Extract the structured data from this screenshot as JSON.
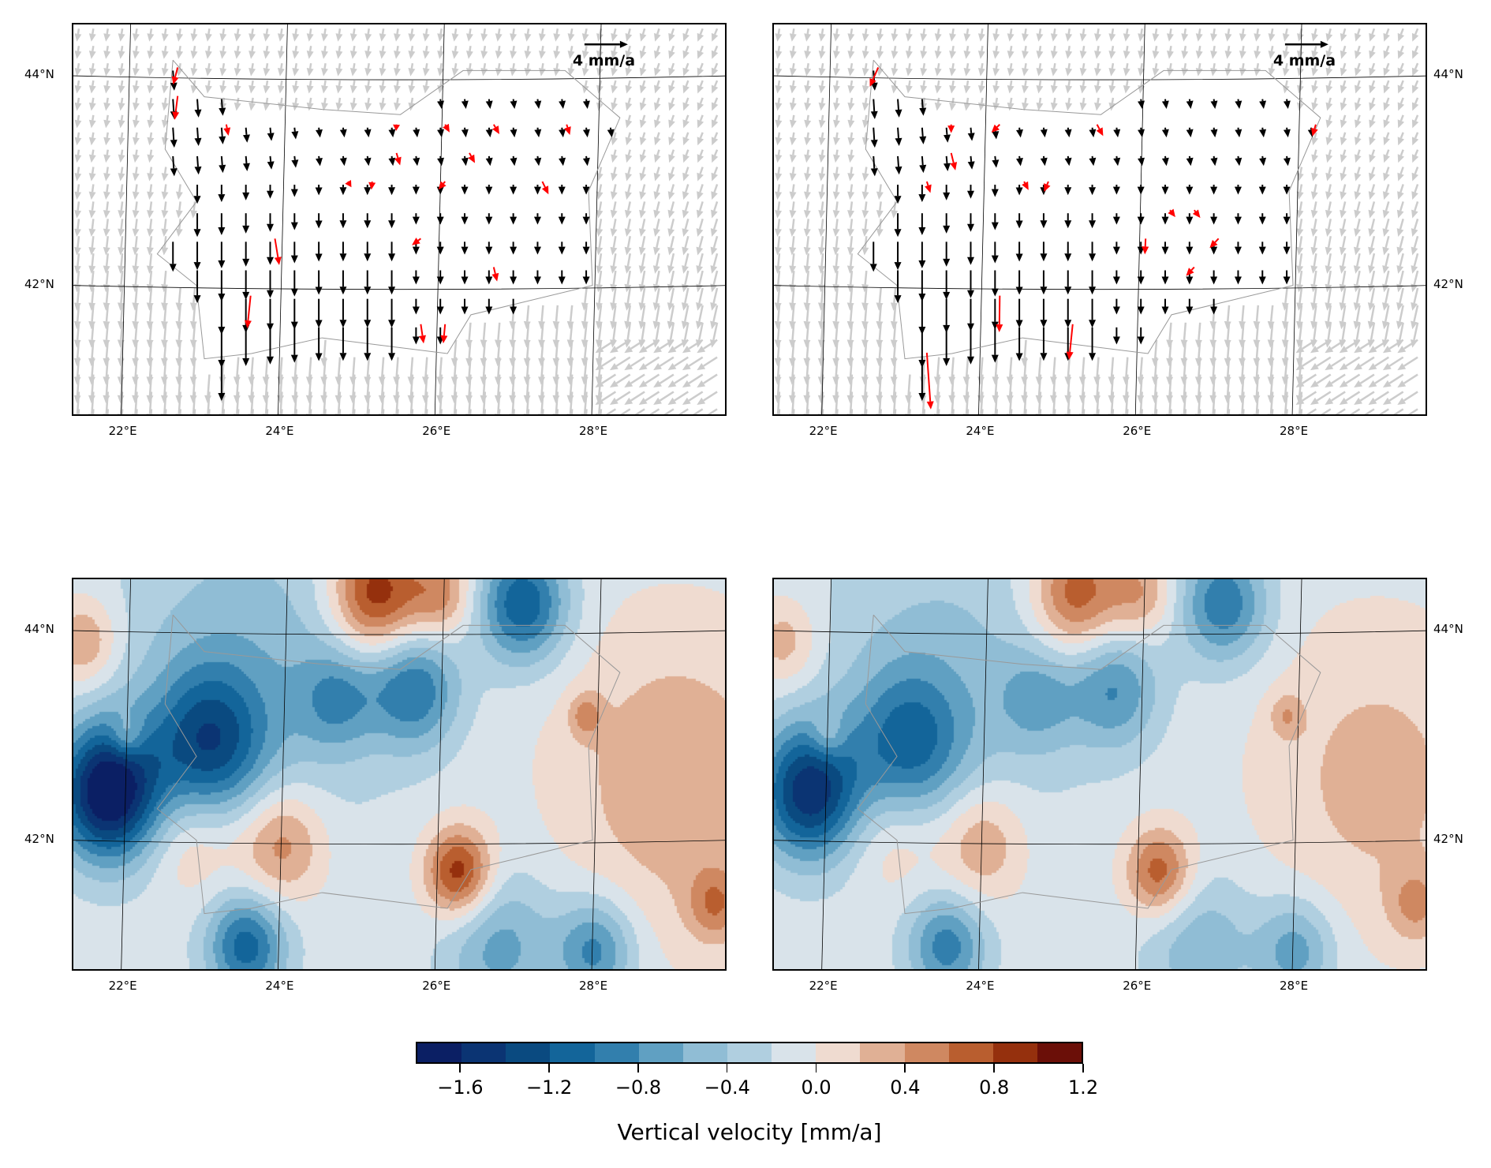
{
  "chart_data": [
    {
      "type": "quiver",
      "panel": "top-left",
      "title": "",
      "legend": {
        "label": "4 mm/a",
        "reference_mm_a": 4
      },
      "xticks": [
        "22°E",
        "24°E",
        "26°E",
        "28°E"
      ],
      "yticks": [
        "44°N",
        "42°N"
      ],
      "amp_factor": 1.0
    },
    {
      "type": "quiver",
      "panel": "top-right",
      "title": "",
      "legend": {
        "label": "4 mm/a",
        "reference_mm_a": 4
      },
      "xticks": [
        "22°E",
        "24°E",
        "26°E",
        "28°E"
      ],
      "yticks": [
        "44°N",
        "42°N"
      ],
      "amp_factor": 1.0
    },
    {
      "type": "heatmap",
      "panel": "bottom-left",
      "xticks": [
        "22°E",
        "24°E",
        "26°E",
        "28°E"
      ],
      "yticks": [
        "44°N",
        "42°N"
      ],
      "amp_factor": 1.0
    },
    {
      "type": "heatmap",
      "panel": "bottom-right",
      "xticks": [
        "22°E",
        "24°E",
        "26°E",
        "28°E"
      ],
      "yticks": [
        "44°N",
        "42°N"
      ],
      "amp_factor": 0.8
    }
  ],
  "extent": {
    "lon": [
      21.33,
      29.68
    ],
    "lat": [
      40.74,
      44.49
    ]
  },
  "anomalies": [
    {
      "lon": 21.76,
      "lat": 42.47,
      "v": -1.75,
      "s": 0.45
    },
    {
      "lon": 23.04,
      "lat": 42.94,
      "v": -1.0,
      "s": 0.5
    },
    {
      "lon": 23.5,
      "lat": 43.6,
      "v": -0.45,
      "s": 1.2
    },
    {
      "lon": 25.17,
      "lat": 44.36,
      "v": 1.1,
      "s": 0.4
    },
    {
      "lon": 26.0,
      "lat": 44.36,
      "v": 0.6,
      "s": 0.3
    },
    {
      "lon": 27.05,
      "lat": 44.27,
      "v": -1.1,
      "s": 0.4
    },
    {
      "lon": 25.66,
      "lat": 43.45,
      "v": -0.85,
      "s": 0.4
    },
    {
      "lon": 24.68,
      "lat": 43.36,
      "v": -0.55,
      "s": 0.35
    },
    {
      "lon": 21.45,
      "lat": 43.9,
      "v": 0.55,
      "s": 0.3
    },
    {
      "lon": 22.0,
      "lat": 43.0,
      "v": 0.45,
      "s": 0.15
    },
    {
      "lon": 23.95,
      "lat": 41.98,
      "v": 0.7,
      "s": 0.4
    },
    {
      "lon": 22.85,
      "lat": 41.98,
      "v": 0.4,
      "s": 0.4
    },
    {
      "lon": 26.23,
      "lat": 41.7,
      "v": 1.05,
      "s": 0.3
    },
    {
      "lon": 29.0,
      "lat": 42.6,
      "v": 0.45,
      "s": 1.0
    },
    {
      "lon": 29.5,
      "lat": 41.4,
      "v": 0.55,
      "s": 0.25
    },
    {
      "lon": 23.52,
      "lat": 41.0,
      "v": -1.0,
      "s": 0.35
    },
    {
      "lon": 27.97,
      "lat": 40.96,
      "v": -0.8,
      "s": 0.35
    },
    {
      "lon": 26.75,
      "lat": 41.0,
      "v": -0.6,
      "s": 0.5
    },
    {
      "lon": 27.85,
      "lat": 43.2,
      "v": 0.45,
      "s": 0.15
    }
  ],
  "colorbar": {
    "label": "Vertical velocity [mm/a]",
    "min": -1.8,
    "max": 1.2,
    "step": 0.2,
    "ticks": [
      "−1.6",
      "−1.2",
      "−0.8",
      "−0.4",
      "0.0",
      "0.4",
      "0.8",
      "1.2"
    ],
    "tick_values": [
      -1.6,
      -1.2,
      -0.8,
      -0.4,
      0.0,
      0.4,
      0.8,
      1.2
    ],
    "colors": [
      "#0b1f64",
      "#0b3473",
      "#0a4a80",
      "#13659a",
      "#327fad",
      "#60a0c2",
      "#90bdd5",
      "#b0cfe0",
      "#d9e3ea",
      "#efdbd0",
      "#e0b095",
      "#cf8861",
      "#b95e2f",
      "#95300d",
      "#6b0f08"
    ]
  },
  "arrow_colors": {
    "background": "#cccccc",
    "station": "#000000",
    "outlier": "#ff0000"
  }
}
